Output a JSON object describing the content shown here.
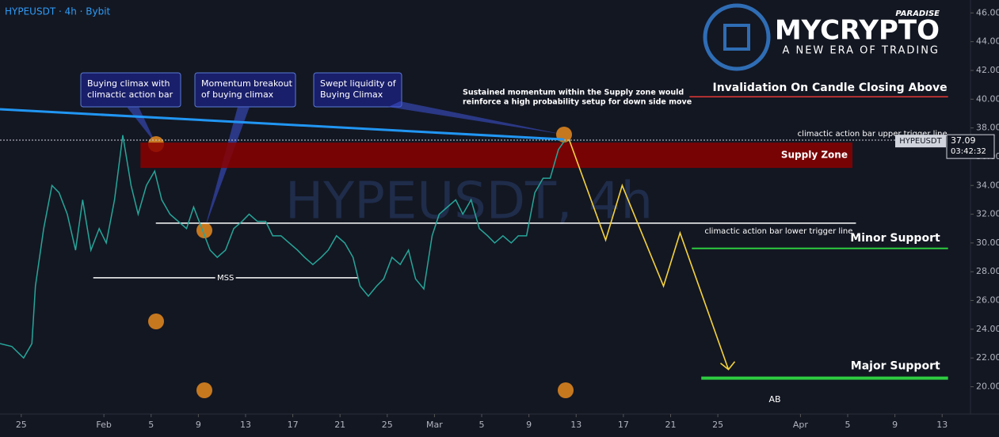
{
  "header": {
    "symbol": "HYPEUSDT · 4h · Bybit",
    "watermark": "HYPEUSDT, 4h"
  },
  "logo": {
    "tag": "PARADISE",
    "name": "MYCRYPTO",
    "slogan": "A NEW ERA OF TRADING"
  },
  "chart_data": {
    "type": "line",
    "ylim": [
      18.1,
      46.9
    ],
    "xlim": [
      -1.8,
      80.4
    ],
    "yticks": [
      {
        "value": 20,
        "label": "20.00"
      },
      {
        "value": 22,
        "label": "22.00"
      },
      {
        "value": 24,
        "label": "24.00"
      },
      {
        "value": 26,
        "label": "26.00"
      },
      {
        "value": 28,
        "label": "28.00"
      },
      {
        "value": 30,
        "label": "30.00"
      },
      {
        "value": 32,
        "label": "32.00"
      },
      {
        "value": 34,
        "label": "34.00"
      },
      {
        "value": 36,
        "label": "36.00"
      },
      {
        "value": 38,
        "label": "38.00"
      },
      {
        "value": 40,
        "label": "40.00"
      },
      {
        "value": 42,
        "label": "42.00"
      },
      {
        "value": 44,
        "label": "44.00"
      },
      {
        "value": 46,
        "label": "46.00"
      }
    ],
    "xticks": [
      {
        "value": 0,
        "label": "25"
      },
      {
        "value": 7,
        "label": "Feb"
      },
      {
        "value": 11,
        "label": "5"
      },
      {
        "value": 15,
        "label": "9"
      },
      {
        "value": 19,
        "label": "13"
      },
      {
        "value": 23,
        "label": "17"
      },
      {
        "value": 27,
        "label": "21"
      },
      {
        "value": 31,
        "label": "25"
      },
      {
        "value": 35,
        "label": "Mar"
      },
      {
        "value": 39,
        "label": "5"
      },
      {
        "value": 43,
        "label": "9"
      },
      {
        "value": 47,
        "label": "13"
      },
      {
        "value": 51,
        "label": "17"
      },
      {
        "value": 55,
        "label": "21"
      },
      {
        "value": 59,
        "label": "25"
      },
      {
        "value": 66,
        "label": "Apr"
      },
      {
        "value": 70,
        "label": "5"
      },
      {
        "value": 74,
        "label": "9"
      },
      {
        "value": 78,
        "label": "13"
      }
    ],
    "series": [
      {
        "name": "HYPEUSDT",
        "color": "#26a69a",
        "x": [
          -1.8,
          -0.8,
          0.2,
          0.9,
          1.2,
          1.9,
          2.6,
          3.2,
          3.9,
          4.6,
          5.2,
          5.9,
          6.6,
          7.2,
          7.9,
          8.6,
          9.3,
          9.9,
          10.6,
          11.3,
          11.9,
          12.6,
          13.3,
          14.0,
          14.6,
          15.3,
          16.0,
          16.6,
          17.3,
          18.0,
          18.7,
          19.3,
          20.0,
          20.7,
          21.3,
          22.0,
          22.7,
          23.4,
          24.0,
          24.7,
          25.4,
          26.0,
          26.7,
          27.4,
          28.1,
          28.7,
          29.4,
          30.1,
          30.7,
          31.4,
          32.1,
          32.8,
          33.4,
          34.1,
          34.8,
          35.4,
          36.1,
          36.8,
          37.4,
          38.1,
          38.8,
          39.5,
          40.1,
          40.8,
          41.5,
          42.1,
          42.8,
          43.5,
          44.2,
          44.8,
          45.5,
          46.0
        ],
        "values": [
          23,
          22.8,
          22,
          23,
          27,
          31,
          34,
          33.5,
          32,
          29.5,
          33,
          29.5,
          31,
          30,
          33,
          37.5,
          34,
          32,
          34,
          35,
          33,
          32,
          31.5,
          31,
          32.5,
          31,
          29.5,
          29,
          29.5,
          31,
          31.5,
          32,
          31.5,
          31.5,
          30.5,
          30.5,
          30,
          29.5,
          29,
          28.5,
          29,
          29.5,
          30.5,
          30,
          29,
          27,
          26.3,
          27,
          27.5,
          29,
          28.5,
          29.5,
          27.5,
          26.8,
          30.5,
          32,
          32.5,
          33,
          32,
          33,
          31,
          30.5,
          30,
          30.5,
          30,
          30.5,
          30.5,
          33.5,
          34.5,
          34.5,
          36.5,
          37.09
        ]
      }
    ],
    "last_price": {
      "symbol": "HYPEUSDT",
      "value": 37.09,
      "countdown": "03:42:32"
    },
    "supply_zone": {
      "name": "Supply Zone",
      "low": 35.22,
      "high": 36.98,
      "from": 10.1,
      "to": 70.4,
      "color": "#8b0000"
    },
    "levels": [
      {
        "name": "Invalidation On Candle Closing Above",
        "value": 40.17,
        "from": 56.6,
        "to": 78.5,
        "color": "#e53935"
      },
      {
        "name": "climactic action bar upper trigger line",
        "value": 37.15,
        "from": -1.8,
        "to": 78.5,
        "color": "#cfd2da"
      },
      {
        "name": "climactic action bar lower trigger line",
        "value": 31.38,
        "from": 11.4,
        "to": 70.7,
        "color": "#ffffff"
      },
      {
        "name": "Minor Support",
        "value": 29.62,
        "from": 56.8,
        "to": 78.5,
        "color": "#2ecc40"
      },
      {
        "name": "Major Support",
        "value": 20.6,
        "from": 57.6,
        "to": 78.5,
        "color": "#2ecc40"
      },
      {
        "name": "MSS",
        "value": 27.58,
        "from": 6.1,
        "to": 28.5,
        "color": "#ffffff"
      }
    ],
    "trendline": {
      "x": [
        -1.8,
        46.0
      ],
      "values": [
        39.3,
        37.2
      ],
      "color": "#2196f3"
    },
    "projection": {
      "x": [
        46.4,
        49.5,
        50.9,
        54.4,
        55.8,
        59.9
      ],
      "values": [
        37.2,
        30.2,
        34.0,
        27.0,
        30.7,
        21.2
      ],
      "color": "#f5d33d"
    },
    "callouts": [
      {
        "lines": [
          "Buying climax with",
          "climactic action bar"
        ]
      },
      {
        "lines": [
          "Momentum breakout",
          "of buying climax"
        ]
      },
      {
        "lines": [
          "Swept liquidity of",
          "Buying Climax"
        ]
      }
    ],
    "note": [
      "Sustained momentum within the Supply zone would",
      "reinforce a high probability setup for down side move"
    ],
    "ab_label": "AB"
  }
}
